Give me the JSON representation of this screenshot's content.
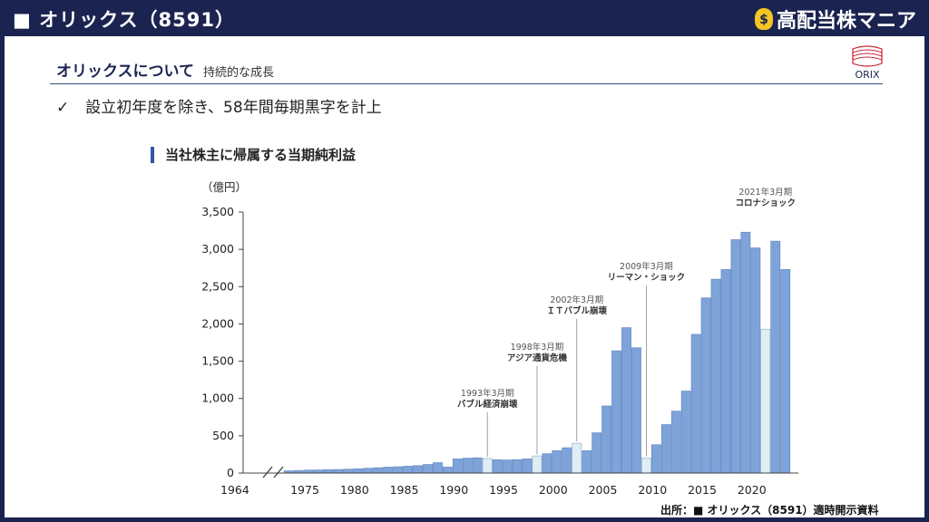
{
  "header": {
    "title": "■ オリックス（8591）",
    "brand": "高配当株マニア",
    "brand_icon": "money-bag-icon"
  },
  "slide": {
    "heading": "オリックスについて",
    "subheading": "持続的な成長",
    "bullet_mark": "✓",
    "bullet": "設立初年度を除き、58年間毎期黒字を計上",
    "chart_title": "当社株主に帰属する当期純利益",
    "logo_text": "ORIX",
    "source": "出所：■ オリックス（8591）適時開示資料"
  },
  "colors": {
    "header_bg": "#1b2450",
    "bar": "#7ea3d9",
    "bar_highlight": "#dfeef5",
    "accent": "#3356a8",
    "logo_red": "#c8202f"
  },
  "chart_data": {
    "type": "bar",
    "unit_label": "（億円）",
    "ylim": [
      0,
      3500
    ],
    "yticks": [
      {
        "value": 0,
        "label": "0"
      },
      {
        "value": 500,
        "label": "500"
      },
      {
        "value": 1000,
        "label": "1,000"
      },
      {
        "value": 1500,
        "label": "1,500"
      },
      {
        "value": 2000,
        "label": "2,000"
      },
      {
        "value": 2500,
        "label": "2,500"
      },
      {
        "value": 3000,
        "label": "3,000"
      },
      {
        "value": 3500,
        "label": "3,500"
      }
    ],
    "xticks": [
      "1964",
      "1975",
      "1980",
      "1985",
      "1990",
      "1995",
      "2000",
      "2005",
      "2010",
      "2015",
      "2020"
    ],
    "axis_break": true,
    "x": [
      1973,
      1974,
      1975,
      1976,
      1977,
      1978,
      1979,
      1980,
      1981,
      1982,
      1983,
      1984,
      1985,
      1986,
      1987,
      1988,
      1989,
      1990,
      1991,
      1992,
      1993,
      1994,
      1995,
      1996,
      1997,
      1998,
      1999,
      2000,
      2001,
      2002,
      2003,
      2004,
      2005,
      2006,
      2007,
      2008,
      2009,
      2010,
      2011,
      2012,
      2013,
      2014,
      2015,
      2016,
      2017,
      2018,
      2019,
      2020,
      2021,
      2022,
      2023
    ],
    "values": [
      30,
      35,
      40,
      42,
      45,
      48,
      52,
      58,
      65,
      72,
      80,
      85,
      92,
      100,
      115,
      140,
      80,
      190,
      200,
      205,
      195,
      180,
      175,
      180,
      190,
      230,
      260,
      300,
      340,
      400,
      300,
      540,
      900,
      1640,
      1950,
      1680,
      200,
      380,
      650,
      830,
      1100,
      1860,
      2350,
      2600,
      2730,
      3130,
      3230,
      3020,
      1930,
      3110,
      2730
    ],
    "highlight": [
      1993,
      1998,
      2002,
      2009,
      2021
    ],
    "annotations": [
      {
        "year": 1993,
        "date": "1993年3月期",
        "event": "バブル経済崩壊"
      },
      {
        "year": 1998,
        "date": "1998年3月期",
        "event": "アジア通貨危機"
      },
      {
        "year": 2002,
        "date": "2002年3月期",
        "event": "ＩＴバブル崩壊"
      },
      {
        "year": 2009,
        "date": "2009年3月期",
        "event": "リーマン・ショック"
      },
      {
        "year": 2021,
        "date": "2021年3月期",
        "event": "コロナショック"
      }
    ]
  }
}
